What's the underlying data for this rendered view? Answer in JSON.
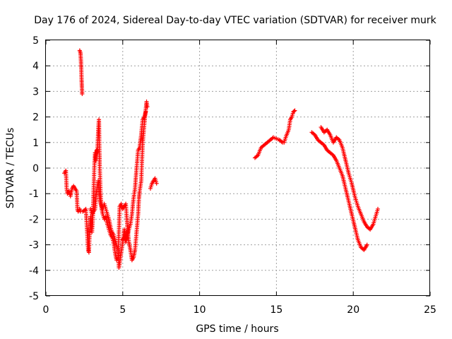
{
  "chart_data": {
    "type": "scatter",
    "title": "Day 176 of 2024, Sidereal Day-to-day VTEC variation (SDTVAR) for receiver murk",
    "xlabel": "GPS time / hours",
    "ylabel": "SDTVAR / TECUs",
    "xlim": [
      0,
      25
    ],
    "ylim": [
      -5,
      5
    ],
    "x_ticks": [
      "0",
      "5",
      "10",
      "15",
      "20",
      "25"
    ],
    "y_ticks": [
      "5",
      "4",
      "3",
      "2",
      "1",
      "0",
      "-1",
      "-2",
      "-3",
      "-4",
      "-5"
    ],
    "grid": true,
    "marker": "+",
    "colors": {
      "series": "#ff0000",
      "grid": "#a0a0a0",
      "axis": "#000000"
    },
    "series": [
      {
        "name": "segment-1",
        "points": [
          [
            1.2,
            -0.2
          ],
          [
            1.3,
            -0.1
          ],
          [
            1.35,
            -0.8
          ],
          [
            1.4,
            -1.0
          ],
          [
            1.5,
            -0.9
          ],
          [
            1.6,
            -1.1
          ],
          [
            1.7,
            -0.8
          ],
          [
            1.8,
            -0.7
          ],
          [
            1.9,
            -0.8
          ],
          [
            2.0,
            -0.9
          ],
          [
            2.05,
            -1.6
          ],
          [
            2.1,
            -1.7
          ],
          [
            2.2,
            -1.6
          ],
          [
            2.25,
            -1.7
          ]
        ]
      },
      {
        "name": "segment-2",
        "points": [
          [
            2.2,
            4.6
          ],
          [
            2.25,
            4.5
          ],
          [
            2.28,
            4.2
          ],
          [
            2.3,
            3.9
          ],
          [
            2.32,
            3.5
          ],
          [
            2.34,
            3.2
          ],
          [
            2.36,
            2.9
          ]
        ]
      },
      {
        "name": "segment-3",
        "points": [
          [
            2.4,
            -1.7
          ],
          [
            2.6,
            -1.6
          ],
          [
            2.75,
            -3.2
          ],
          [
            2.8,
            -3.3
          ],
          [
            2.85,
            -2.4
          ],
          [
            2.9,
            -1.9
          ],
          [
            3.0,
            -2.5
          ],
          [
            3.05,
            -2.0
          ],
          [
            3.1,
            -1.0
          ],
          [
            3.15,
            0.0
          ],
          [
            3.2,
            0.6
          ],
          [
            3.25,
            0.3
          ],
          [
            3.3,
            0.7
          ],
          [
            3.35,
            0.6
          ],
          [
            3.4,
            1.4
          ],
          [
            3.45,
            1.9
          ],
          [
            3.5,
            0.1
          ],
          [
            3.55,
            -0.9
          ],
          [
            3.6,
            -1.4
          ],
          [
            3.7,
            -1.6
          ],
          [
            3.8,
            -1.4
          ],
          [
            3.9,
            -1.6
          ],
          [
            4.0,
            -1.8
          ],
          [
            4.1,
            -2.0
          ],
          [
            4.2,
            -2.3
          ],
          [
            4.3,
            -2.5
          ],
          [
            4.4,
            -2.6
          ],
          [
            4.5,
            -2.8
          ],
          [
            4.6,
            -3.0
          ],
          [
            4.7,
            -3.2
          ],
          [
            4.75,
            -3.9
          ],
          [
            4.8,
            -3.7
          ],
          [
            4.9,
            -3.3
          ],
          [
            5.0,
            -2.9
          ],
          [
            5.1,
            -2.4
          ],
          [
            5.2,
            -2.8
          ],
          [
            5.3,
            -2.5
          ]
        ]
      },
      {
        "name": "segment-4",
        "points": [
          [
            2.9,
            -1.6
          ],
          [
            3.0,
            -1.8
          ],
          [
            3.1,
            -1.7
          ],
          [
            3.2,
            -1.6
          ],
          [
            3.3,
            -0.9
          ],
          [
            3.4,
            -0.5
          ],
          [
            3.5,
            -1.2
          ],
          [
            3.6,
            -1.5
          ],
          [
            3.7,
            -1.8
          ],
          [
            3.8,
            -2.0
          ],
          [
            3.9,
            -1.9
          ],
          [
            4.0,
            -2.2
          ],
          [
            4.1,
            -2.4
          ],
          [
            4.2,
            -2.6
          ],
          [
            4.3,
            -2.7
          ],
          [
            4.4,
            -2.9
          ],
          [
            4.5,
            -3.3
          ],
          [
            4.6,
            -3.6
          ],
          [
            4.7,
            -3.5
          ],
          [
            4.8,
            -1.5
          ],
          [
            4.9,
            -1.4
          ],
          [
            5.0,
            -1.6
          ],
          [
            5.1,
            -1.5
          ],
          [
            5.2,
            -1.4
          ],
          [
            5.3,
            -2.3
          ],
          [
            5.4,
            -2.9
          ],
          [
            5.5,
            -3.2
          ],
          [
            5.6,
            -3.6
          ],
          [
            5.7,
            -3.5
          ],
          [
            5.8,
            -3.2
          ],
          [
            5.9,
            -2.5
          ],
          [
            6.0,
            -1.8
          ],
          [
            6.05,
            -1.2
          ],
          [
            6.1,
            -0.9
          ],
          [
            6.2,
            -0.5
          ],
          [
            6.3,
            1.0
          ],
          [
            6.4,
            1.7
          ],
          [
            6.5,
            2.3
          ],
          [
            6.55,
            2.6
          ],
          [
            6.6,
            2.4
          ]
        ]
      },
      {
        "name": "segment-5",
        "points": [
          [
            5.0,
            -2.8
          ],
          [
            5.1,
            -2.7
          ],
          [
            5.2,
            -2.9
          ],
          [
            5.3,
            -2.7
          ],
          [
            5.4,
            -2.4
          ],
          [
            5.5,
            -2.2
          ],
          [
            5.6,
            -1.8
          ],
          [
            5.7,
            -1.2
          ],
          [
            5.8,
            -0.8
          ],
          [
            5.9,
            0.0
          ],
          [
            6.0,
            0.7
          ],
          [
            6.1,
            0.8
          ],
          [
            6.2,
            1.3
          ],
          [
            6.3,
            1.9
          ],
          [
            6.4,
            2.0
          ],
          [
            6.5,
            2.2
          ]
        ]
      },
      {
        "name": "segment-6",
        "points": [
          [
            6.8,
            -0.8
          ],
          [
            6.9,
            -0.6
          ],
          [
            7.0,
            -0.5
          ],
          [
            7.1,
            -0.4
          ],
          [
            7.2,
            -0.6
          ]
        ]
      },
      {
        "name": "segment-7",
        "points": [
          [
            13.6,
            0.4
          ],
          [
            13.8,
            0.5
          ],
          [
            14.0,
            0.8
          ],
          [
            14.2,
            0.9
          ],
          [
            14.4,
            1.0
          ],
          [
            14.6,
            1.1
          ],
          [
            14.8,
            1.2
          ],
          [
            15.0,
            1.15
          ],
          [
            15.2,
            1.1
          ],
          [
            15.4,
            1.0
          ],
          [
            15.5,
            1.0
          ],
          [
            15.6,
            1.2
          ],
          [
            15.8,
            1.5
          ],
          [
            15.9,
            1.9
          ],
          [
            16.0,
            2.0
          ],
          [
            16.1,
            2.2
          ],
          [
            16.2,
            2.25
          ]
        ]
      },
      {
        "name": "segment-8",
        "points": [
          [
            17.3,
            1.4
          ],
          [
            17.5,
            1.3
          ],
          [
            17.7,
            1.1
          ],
          [
            17.9,
            1.0
          ],
          [
            18.1,
            0.9
          ],
          [
            18.3,
            0.7
          ],
          [
            18.5,
            0.6
          ],
          [
            18.7,
            0.5
          ],
          [
            18.9,
            0.3
          ],
          [
            19.1,
            0.0
          ],
          [
            19.3,
            -0.3
          ],
          [
            19.5,
            -0.8
          ],
          [
            19.7,
            -1.3
          ],
          [
            19.9,
            -1.8
          ],
          [
            20.1,
            -2.3
          ],
          [
            20.3,
            -2.8
          ],
          [
            20.5,
            -3.1
          ],
          [
            20.7,
            -3.2
          ],
          [
            20.9,
            -3.0
          ]
        ]
      },
      {
        "name": "segment-9",
        "points": [
          [
            17.9,
            1.6
          ],
          [
            18.1,
            1.4
          ],
          [
            18.3,
            1.5
          ],
          [
            18.5,
            1.3
          ],
          [
            18.7,
            1.0
          ],
          [
            18.9,
            1.2
          ],
          [
            19.1,
            1.1
          ],
          [
            19.3,
            0.8
          ],
          [
            19.5,
            0.3
          ],
          [
            19.7,
            -0.2
          ],
          [
            19.9,
            -0.6
          ],
          [
            20.1,
            -1.1
          ],
          [
            20.3,
            -1.5
          ],
          [
            20.5,
            -1.8
          ],
          [
            20.7,
            -2.1
          ],
          [
            20.9,
            -2.3
          ],
          [
            21.1,
            -2.4
          ],
          [
            21.3,
            -2.2
          ],
          [
            21.5,
            -1.8
          ],
          [
            21.6,
            -1.6
          ]
        ]
      }
    ]
  }
}
